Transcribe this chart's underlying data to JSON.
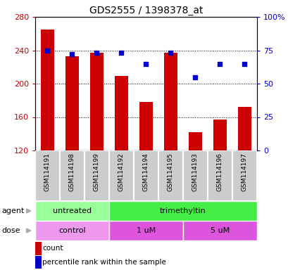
{
  "title": "GDS2555 / 1398378_at",
  "samples": [
    "GSM114191",
    "GSM114198",
    "GSM114199",
    "GSM114192",
    "GSM114194",
    "GSM114195",
    "GSM114193",
    "GSM114196",
    "GSM114197"
  ],
  "count_values": [
    265,
    233,
    237,
    209,
    178,
    237,
    142,
    157,
    172
  ],
  "percentile_values": [
    75,
    72,
    73,
    73,
    65,
    73,
    55,
    65,
    65
  ],
  "ylim_left": [
    120,
    280
  ],
  "ylim_right": [
    0,
    100
  ],
  "bar_color": "#cc0000",
  "dot_color": "#0000cc",
  "bar_width": 0.55,
  "grid_color": "black",
  "left_yticks": [
    120,
    160,
    200,
    240,
    280
  ],
  "right_yticks": [
    0,
    25,
    50,
    75,
    100
  ],
  "right_yticklabels": [
    "0",
    "25",
    "50",
    "75",
    "100%"
  ],
  "left_tick_color": "#cc0000",
  "right_tick_color": "#0000cc",
  "agent_labels": [
    {
      "label": "untreated",
      "start": 0,
      "end": 3,
      "color": "#99ff99"
    },
    {
      "label": "trimethyltin",
      "start": 3,
      "end": 9,
      "color": "#44ee44"
    }
  ],
  "dose_labels": [
    {
      "label": "control",
      "start": 0,
      "end": 3,
      "color": "#ee99ee"
    },
    {
      "label": "1 uM",
      "start": 3,
      "end": 6,
      "color": "#dd55dd"
    },
    {
      "label": "5 uM",
      "start": 6,
      "end": 9,
      "color": "#dd55dd"
    }
  ],
  "legend_items": [
    {
      "color": "#cc0000",
      "label": "count"
    },
    {
      "color": "#0000cc",
      "label": "percentile rank within the sample"
    }
  ],
  "sample_bg_color": "#cccccc",
  "sample_border_color": "#ffffff",
  "agent_row_label": "agent",
  "dose_row_label": "dose",
  "arrow_color": "#aaaaaa"
}
